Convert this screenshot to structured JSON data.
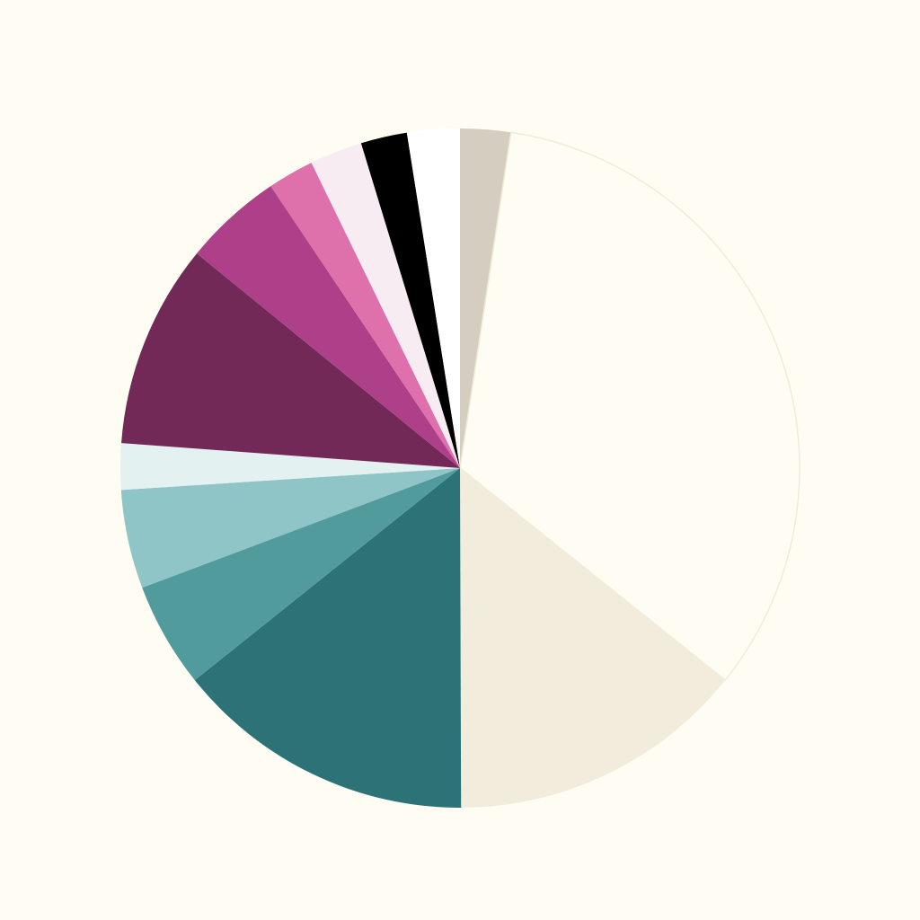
{
  "chart_data": {
    "type": "pie",
    "title": "",
    "start_angle": "12 o'clock",
    "direction": "clockwise",
    "background_color": "#fffdf3",
    "legend": "none",
    "slices": [
      {
        "value": 2.4,
        "color": "#d5cec0"
      },
      {
        "value": 33.3,
        "color": "#fffdf3"
      },
      {
        "value": 14.2,
        "color": "#f2ecdc"
      },
      {
        "value": 14.3,
        "color": "#2d7276"
      },
      {
        "value": 5.0,
        "color": "#519b9d"
      },
      {
        "value": 4.7,
        "color": "#90c5c7"
      },
      {
        "value": 2.2,
        "color": "#e3f1f0"
      },
      {
        "value": 9.7,
        "color": "#722957"
      },
      {
        "value": 4.7,
        "color": "#ad4088"
      },
      {
        "value": 2.2,
        "color": "#de70ab"
      },
      {
        "value": 2.5,
        "color": "#f8ecf3"
      },
      {
        "value": 2.2,
        "color": "#000000"
      },
      {
        "value": 2.5,
        "color": "#ffffff"
      }
    ]
  }
}
